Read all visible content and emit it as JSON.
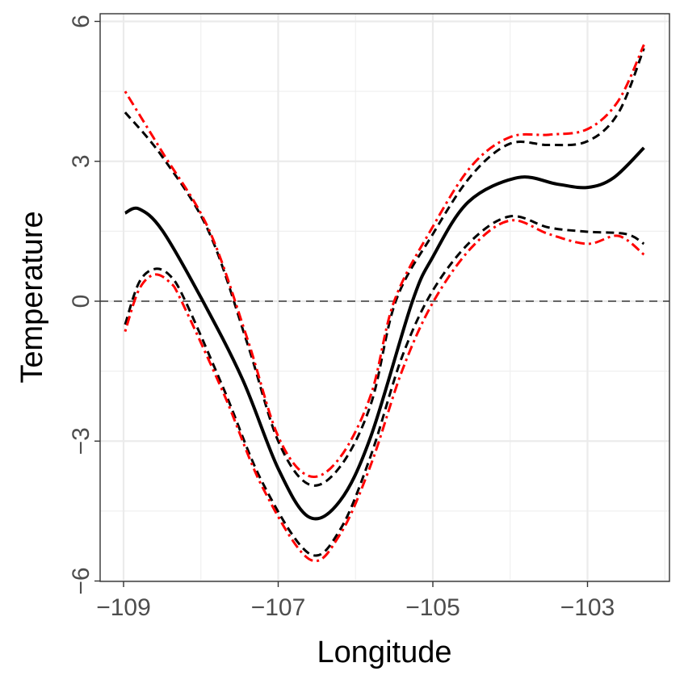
{
  "chart_data": {
    "type": "line",
    "title": "",
    "xlabel": "Longitude",
    "ylabel": "Temperature",
    "xlim": [
      -109.3,
      -101.95
    ],
    "ylim": [
      -6.0,
      6.17
    ],
    "x_ticks": [
      -109,
      -107,
      -105,
      -103
    ],
    "x_tick_labels": [
      "−109",
      "−107",
      "−105",
      "−103"
    ],
    "y_ticks": [
      -6,
      -3,
      0,
      3,
      6
    ],
    "y_tick_labels": [
      "−6",
      "−3",
      "0",
      "3",
      "6"
    ],
    "grid": true,
    "reference_line": {
      "y": 0,
      "style": "dashed",
      "color": "#666666"
    },
    "series": [
      {
        "style": "solid",
        "color": "#000000",
        "x": [
          -108.98,
          -108.8,
          -108.5,
          -107.99,
          -107.46,
          -107.0,
          -106.6,
          -106.2,
          -105.8,
          -105.27,
          -105.0,
          -104.54,
          -103.9,
          -103.39,
          -103.0,
          -102.66,
          -102.27
        ],
        "y": [
          1.89,
          1.98,
          1.52,
          0.05,
          -1.68,
          -3.59,
          -4.63,
          -4.28,
          -2.89,
          -0.03,
          0.95,
          2.13,
          2.65,
          2.51,
          2.44,
          2.65,
          3.29
        ]
      },
      {
        "style": "dashed",
        "color": "#000000",
        "x": [
          -108.98,
          -108.5,
          -107.9,
          -107.4,
          -107.0,
          -106.6,
          -106.2,
          -105.8,
          -105.48,
          -105.0,
          -104.5,
          -104.0,
          -103.5,
          -103.0,
          -102.6,
          -102.27
        ],
        "y": [
          4.05,
          3.1,
          1.5,
          -0.9,
          -3.0,
          -3.93,
          -3.55,
          -2.2,
          0.0,
          1.44,
          2.7,
          3.38,
          3.35,
          3.43,
          4.04,
          5.42
        ]
      },
      {
        "style": "dashed",
        "color": "#000000",
        "x": [
          -108.98,
          -108.8,
          -108.6,
          -108.4,
          -108.2,
          -107.7,
          -107.2,
          -106.6,
          -106.2,
          -105.8,
          -105.4,
          -105.0,
          -104.5,
          -104.0,
          -103.5,
          -103.0,
          -102.5,
          -102.27
        ],
        "y": [
          -0.5,
          0.4,
          0.69,
          0.55,
          0.0,
          -1.9,
          -3.9,
          -5.41,
          -4.9,
          -3.3,
          -1.2,
          0.23,
          1.3,
          1.82,
          1.58,
          1.49,
          1.44,
          1.23
        ]
      },
      {
        "style": "dotdash",
        "color": "#ff0000",
        "x": [
          -108.98,
          -108.5,
          -107.9,
          -107.4,
          -107.0,
          -106.6,
          -106.2,
          -105.8,
          -105.5,
          -105.0,
          -104.5,
          -104.0,
          -103.5,
          -103.0,
          -102.6,
          -102.27
        ],
        "y": [
          4.5,
          3.2,
          1.55,
          -0.8,
          -2.9,
          -3.75,
          -3.35,
          -2.0,
          0.0,
          1.6,
          2.9,
          3.52,
          3.57,
          3.69,
          4.3,
          5.5
        ]
      },
      {
        "style": "dotdash",
        "color": "#ff0000",
        "x": [
          -108.98,
          -108.8,
          -108.6,
          -108.4,
          -108.25,
          -107.7,
          -107.2,
          -106.6,
          -106.2,
          -105.8,
          -105.4,
          -105.0,
          -104.5,
          -104.0,
          -103.5,
          -103.0,
          -102.6,
          -102.27
        ],
        "y": [
          -0.65,
          0.25,
          0.57,
          0.4,
          0.0,
          -2.0,
          -4.0,
          -5.53,
          -5.0,
          -3.5,
          -1.5,
          -0.03,
          1.15,
          1.73,
          1.44,
          1.23,
          1.4,
          1.0
        ]
      }
    ]
  }
}
